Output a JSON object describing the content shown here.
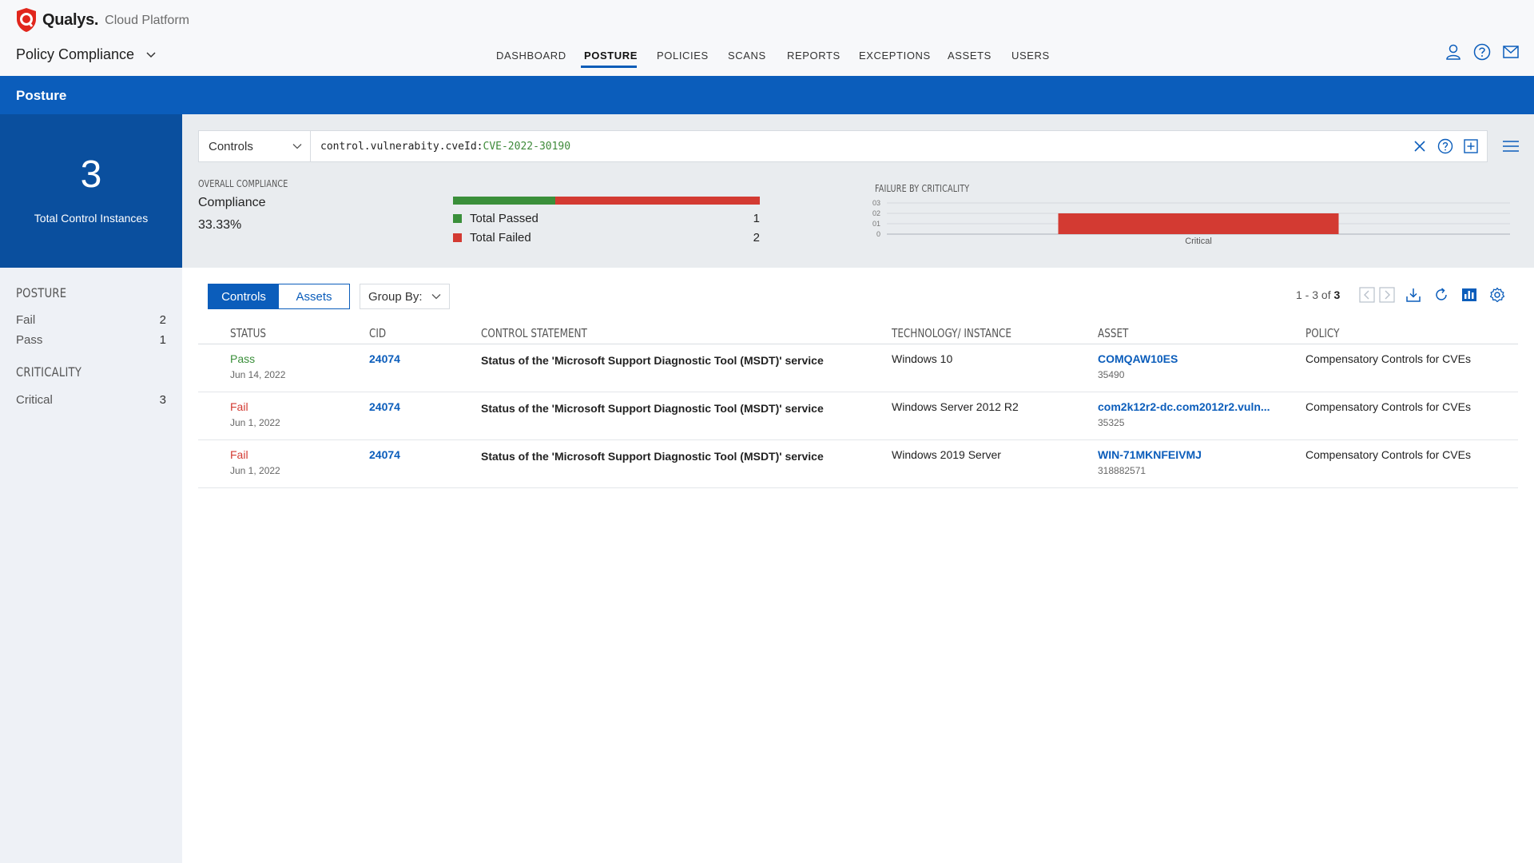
{
  "brand": {
    "name": "Qualys.",
    "product": "Cloud Platform",
    "accent": "#0b5dbb",
    "logo_color": "#e1261c"
  },
  "app": {
    "title": "Policy Compliance"
  },
  "nav": [
    "DASHBOARD",
    "POSTURE",
    "POLICIES",
    "SCANS",
    "REPORTS",
    "EXCEPTIONS",
    "ASSETS",
    "USERS"
  ],
  "nav_active": "POSTURE",
  "header_icons": [
    "user-icon",
    "help-icon",
    "mail-icon"
  ],
  "page": {
    "title": "Posture"
  },
  "stat": {
    "value": "3",
    "label": "Total Control Instances"
  },
  "sidebar": {
    "posture_heading": "POSTURE",
    "posture": [
      {
        "label": "Fail",
        "count": "2"
      },
      {
        "label": "Pass",
        "count": "1"
      }
    ],
    "criticality_heading": "CRITICALITY",
    "criticality": [
      {
        "label": "Critical",
        "count": "3"
      }
    ]
  },
  "search": {
    "type": "Controls",
    "query_key": "control.vulnerabity.cveId:",
    "query_value": "CVE-2022-30190"
  },
  "compliance": {
    "section_label": "OVERALL COMPLIANCE",
    "title": "Compliance",
    "percent": "33.33%",
    "pass_fraction": 0.3333,
    "passed_label": "Total Passed",
    "passed_count": "1",
    "failed_label": "Total Failed",
    "failed_count": "2",
    "pass_color": "#3a8f3a",
    "fail_color": "#d33a32"
  },
  "chart_data": {
    "type": "bar",
    "title": "FAILURE BY CRITICALITY",
    "categories": [
      "Critical"
    ],
    "values": [
      2
    ],
    "yticks": [
      "0",
      "01",
      "02",
      "03"
    ],
    "ylim": [
      0,
      3
    ],
    "grid": true,
    "bar_color": "#d33a32"
  },
  "toolbar": {
    "views": [
      "Controls",
      "Assets"
    ],
    "active_view": "Controls",
    "group_by": "Group By:",
    "paging_prefix": "1 - 3 of ",
    "paging_total": "3"
  },
  "table": {
    "headers": [
      "STATUS",
      "CID",
      "CONTROL STATEMENT",
      "TECHNOLOGY/ INSTANCE",
      "ASSET",
      "POLICY"
    ],
    "rows": [
      {
        "status": "Pass",
        "date": "Jun 14, 2022",
        "cid": "24074",
        "statement": "Status of the 'Microsoft Support Diagnostic Tool (MSDT)' service",
        "technology": "Windows 10",
        "asset": "COMQAW10ES",
        "asset_id": "35490",
        "policy": "Compensatory Controls for CVEs"
      },
      {
        "status": "Fail",
        "date": "Jun 1, 2022",
        "cid": "24074",
        "statement": "Status of the 'Microsoft Support Diagnostic Tool (MSDT)' service",
        "technology": "Windows Server 2012 R2",
        "asset": "com2k12r2-dc.com2012r2.vuln...",
        "asset_id": "35325",
        "policy": "Compensatory Controls for CVEs"
      },
      {
        "status": "Fail",
        "date": "Jun 1, 2022",
        "cid": "24074",
        "statement": "Status of the 'Microsoft Support Diagnostic Tool (MSDT)' service",
        "technology": "Windows 2019 Server",
        "asset": "WIN-71MKNFEIVMJ",
        "asset_id": "318882571",
        "policy": "Compensatory Controls for CVEs"
      }
    ]
  }
}
